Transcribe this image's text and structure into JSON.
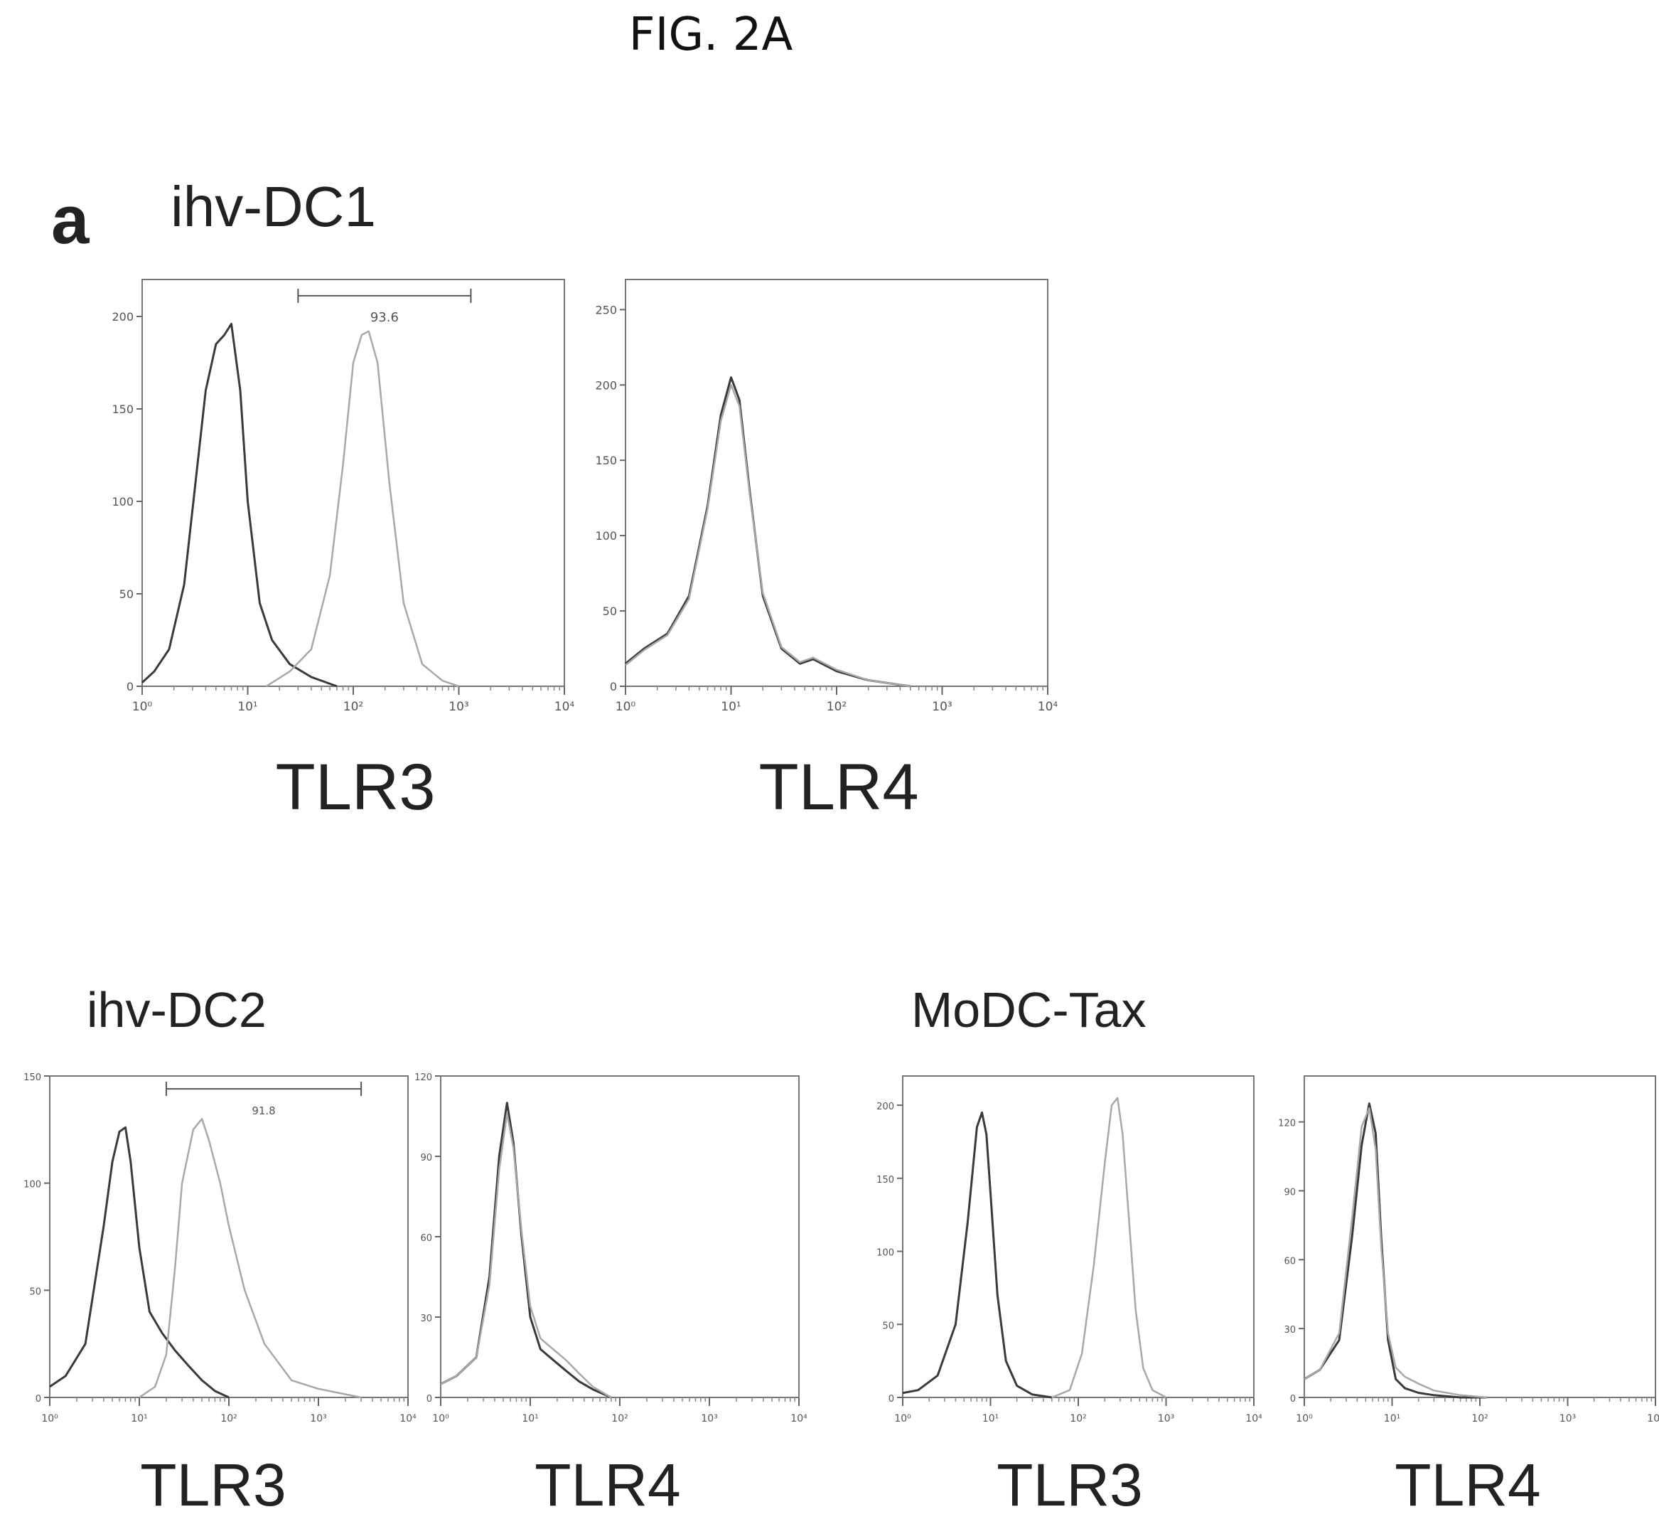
{
  "figure_title": "FIG. 2A",
  "panel_letter": "a",
  "groups": [
    {
      "label": "ihv-DC1"
    },
    {
      "label": "ihv-DC2"
    },
    {
      "label": "MoDC-Tax"
    }
  ],
  "colors": {
    "isotype": "#3a3a3a",
    "stained": "#a8a8a8",
    "frame": "#777777"
  },
  "chart_data": [
    {
      "type": "line",
      "group": "ihv-DC1",
      "xlabel": "TLR3",
      "xscale": "log",
      "xlim": [
        1,
        10000
      ],
      "ylim": [
        0,
        220
      ],
      "yticks": [
        0,
        50,
        100,
        150,
        200
      ],
      "xticks": [
        "10⁰",
        "10¹",
        "10²",
        "10³",
        "10⁴"
      ],
      "gate": {
        "label": "93.6",
        "from": 30,
        "to": 1300
      },
      "series": [
        {
          "role": "isotype",
          "x": [
            1,
            1.3,
            1.8,
            2.5,
            3.2,
            4,
            5,
            6,
            7,
            8.5,
            10,
            13,
            17,
            25,
            40,
            70
          ],
          "y": [
            2,
            8,
            20,
            55,
            110,
            160,
            185,
            190,
            196,
            160,
            100,
            45,
            25,
            12,
            5,
            0
          ]
        },
        {
          "role": "stained",
          "x": [
            15,
            25,
            40,
            60,
            80,
            100,
            120,
            140,
            170,
            220,
            300,
            450,
            700,
            1000
          ],
          "y": [
            0,
            8,
            20,
            60,
            120,
            175,
            190,
            192,
            175,
            110,
            45,
            12,
            3,
            0
          ]
        }
      ]
    },
    {
      "type": "line",
      "group": "ihv-DC1",
      "xlabel": "TLR4",
      "xscale": "log",
      "xlim": [
        1,
        10000
      ],
      "ylim": [
        0,
        270
      ],
      "yticks": [
        0,
        50,
        100,
        150,
        200,
        250
      ],
      "xticks": [
        "10⁰",
        "10¹",
        "10²",
        "10³",
        "10⁴"
      ],
      "series": [
        {
          "role": "isotype",
          "x": [
            1,
            1.5,
            2.5,
            4,
            6,
            8,
            10,
            12,
            15,
            20,
            30,
            45,
            60,
            100,
            200,
            500
          ],
          "y": [
            15,
            25,
            35,
            60,
            120,
            180,
            205,
            190,
            130,
            60,
            25,
            15,
            18,
            10,
            4,
            0
          ]
        },
        {
          "role": "stained",
          "x": [
            1,
            1.5,
            2.5,
            4,
            6,
            8,
            10,
            12,
            15,
            20,
            30,
            45,
            60,
            100,
            200,
            500
          ],
          "y": [
            14,
            24,
            34,
            58,
            118,
            176,
            200,
            186,
            128,
            62,
            26,
            16,
            19,
            11,
            4,
            0
          ]
        }
      ]
    },
    {
      "type": "line",
      "group": "ihv-DC2",
      "xlabel": "TLR3",
      "xscale": "log",
      "xlim": [
        1,
        10000
      ],
      "ylim": [
        0,
        150
      ],
      "yticks": [
        0,
        50,
        100,
        150
      ],
      "xticks": [
        "10⁰",
        "10¹",
        "10²",
        "10³",
        "10⁴"
      ],
      "gate": {
        "label": "91.8",
        "from": 20,
        "to": 3000
      },
      "series": [
        {
          "role": "isotype",
          "x": [
            1,
            1.5,
            2.5,
            4,
            5,
            6,
            7,
            8,
            10,
            13,
            18,
            25,
            35,
            50,
            70,
            100
          ],
          "y": [
            5,
            10,
            25,
            80,
            110,
            124,
            126,
            110,
            70,
            40,
            30,
            22,
            15,
            8,
            3,
            0
          ]
        },
        {
          "role": "stained",
          "x": [
            10,
            15,
            20,
            25,
            30,
            40,
            50,
            60,
            80,
            100,
            150,
            250,
            500,
            1000,
            3000
          ],
          "y": [
            0,
            5,
            20,
            60,
            100,
            125,
            130,
            120,
            100,
            80,
            50,
            25,
            8,
            4,
            0
          ]
        }
      ]
    },
    {
      "type": "line",
      "group": "ihv-DC2",
      "xlabel": "TLR4",
      "xscale": "log",
      "xlim": [
        1,
        10000
      ],
      "ylim": [
        0,
        120
      ],
      "yticks": [
        0,
        30,
        60,
        90,
        120
      ],
      "xticks": [
        "10⁰",
        "10¹",
        "10²",
        "10³",
        "10⁴"
      ],
      "series": [
        {
          "role": "isotype",
          "x": [
            1,
            1.5,
            2.5,
            3.5,
            4.5,
            5.5,
            6.5,
            8,
            10,
            13,
            18,
            25,
            35,
            50,
            80
          ],
          "y": [
            5,
            8,
            15,
            45,
            90,
            110,
            95,
            60,
            30,
            18,
            14,
            10,
            6,
            3,
            0
          ]
        },
        {
          "role": "stained",
          "x": [
            1,
            1.5,
            2.5,
            3.5,
            4.5,
            5.5,
            6.5,
            8,
            10,
            13,
            18,
            25,
            35,
            50,
            80
          ],
          "y": [
            5,
            8,
            15,
            42,
            85,
            106,
            93,
            62,
            34,
            22,
            18,
            14,
            9,
            4,
            0
          ]
        }
      ]
    },
    {
      "type": "line",
      "group": "MoDC-Tax",
      "xlabel": "TLR3",
      "xscale": "log",
      "xlim": [
        1,
        10000
      ],
      "ylim": [
        0,
        220
      ],
      "yticks": [
        0,
        50,
        100,
        150,
        200
      ],
      "xticks": [
        "10⁰",
        "10¹",
        "10²",
        "10³",
        "10⁴"
      ],
      "series": [
        {
          "role": "isotype",
          "x": [
            1,
            1.5,
            2.5,
            4,
            5.5,
            7,
            8,
            9,
            10,
            12,
            15,
            20,
            30,
            50
          ],
          "y": [
            3,
            5,
            15,
            50,
            120,
            185,
            195,
            180,
            140,
            70,
            25,
            8,
            2,
            0
          ]
        },
        {
          "role": "stained",
          "x": [
            50,
            80,
            110,
            150,
            200,
            240,
            280,
            320,
            380,
            450,
            550,
            700,
            1000
          ],
          "y": [
            0,
            5,
            30,
            90,
            160,
            200,
            205,
            180,
            120,
            60,
            20,
            5,
            0
          ]
        }
      ]
    },
    {
      "type": "line",
      "group": "MoDC-Tax",
      "xlabel": "TLR4",
      "xscale": "log",
      "xlim": [
        1,
        10000
      ],
      "ylim": [
        0,
        140
      ],
      "yticks": [
        0,
        30,
        60,
        90,
        120
      ],
      "xticks": [
        "10⁰",
        "10¹",
        "10²",
        "10³",
        "10⁴"
      ],
      "series": [
        {
          "role": "isotype",
          "x": [
            1,
            1.5,
            2.5,
            3.5,
            4.5,
            5.5,
            6.5,
            7.5,
            9,
            11,
            14,
            20,
            30,
            60,
            120
          ],
          "y": [
            8,
            12,
            25,
            70,
            110,
            128,
            115,
            70,
            25,
            8,
            4,
            2,
            1,
            0,
            0
          ]
        },
        {
          "role": "stained",
          "x": [
            1,
            1.5,
            2.5,
            3.5,
            4.5,
            5.5,
            6.5,
            7.5,
            9,
            11,
            14,
            20,
            30,
            60,
            120
          ],
          "y": [
            8,
            12,
            28,
            78,
            118,
            126,
            108,
            66,
            28,
            13,
            9,
            6,
            3,
            1,
            0
          ]
        }
      ]
    }
  ]
}
